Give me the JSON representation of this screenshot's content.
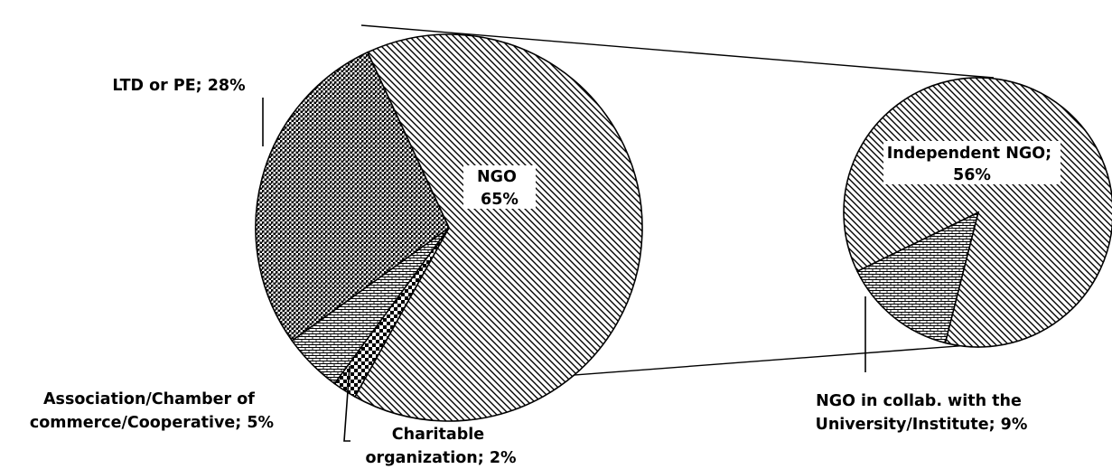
{
  "chart_data": {
    "type": "bar-of-pie",
    "main_pie": {
      "slices": [
        {
          "key": "ngo",
          "value": 65,
          "pattern": "diag",
          "label_lines": [
            "NGO",
            "65%"
          ]
        },
        {
          "key": "charitable",
          "value": 2,
          "pattern": "diamond",
          "label_lines": [
            "Charitable",
            "organization; 2%"
          ]
        },
        {
          "key": "association",
          "value": 5,
          "pattern": "brick",
          "label_lines": [
            "Association/Chamber of",
            "commerce/Cooperative; 5%"
          ]
        },
        {
          "key": "ltd",
          "value": 28,
          "pattern": "weave",
          "label_lines": [
            "LTD or PE; 28%"
          ]
        }
      ]
    },
    "secondary_pie": {
      "slices": [
        {
          "key": "collab",
          "value": 9,
          "pattern": "brick",
          "label_lines": [
            "NGO in collab. with the",
            "University/Institute; 9%"
          ]
        },
        {
          "key": "independent",
          "value": 56,
          "pattern": "diag",
          "label_lines": [
            "Independent NGO;",
            "56%"
          ]
        }
      ]
    },
    "colors": {
      "fill": "#ffffff",
      "stroke": "#000000"
    }
  }
}
